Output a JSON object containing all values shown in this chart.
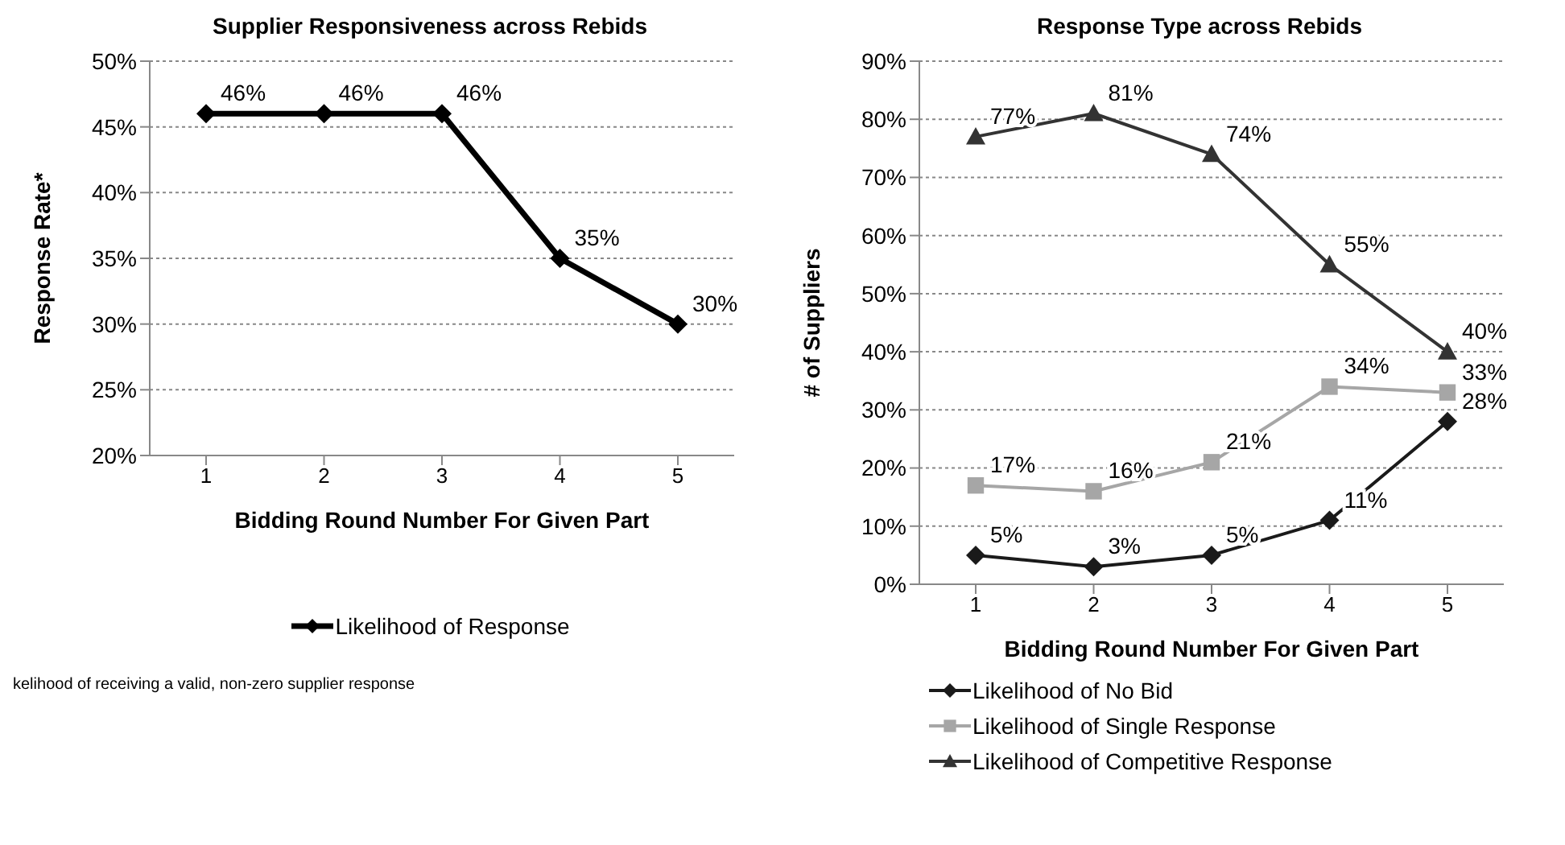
{
  "chart_data": [
    {
      "type": "line",
      "title": "Supplier Responsiveness across Rebids",
      "xlabel": "Bidding Round Number For Given Part",
      "ylabel": "Response Rate*",
      "categories": [
        "1",
        "2",
        "3",
        "4",
        "5"
      ],
      "ylim": [
        20,
        50
      ],
      "yticks": [
        {
          "value": 20,
          "label": "20%"
        },
        {
          "value": 25,
          "label": "25%"
        },
        {
          "value": 30,
          "label": "30%"
        },
        {
          "value": 35,
          "label": "35%"
        },
        {
          "value": 40,
          "label": "40%"
        },
        {
          "value": 45,
          "label": "45%"
        },
        {
          "value": 50,
          "label": "50%"
        }
      ],
      "grid": "y",
      "legend": "bottom",
      "series": [
        {
          "name": "Likelihood of Response",
          "color": "#000000",
          "marker": "diamond",
          "values": [
            46,
            46,
            46,
            35,
            30
          ],
          "value_labels": [
            "46%",
            "46%",
            "46%",
            "35%",
            "30%"
          ]
        }
      ],
      "annotations": [
        "kelihood of receiving a valid, non-zero supplier response"
      ]
    },
    {
      "type": "line",
      "title": "Response Type across Rebids",
      "xlabel": "Bidding Round Number For Given Part",
      "ylabel": "# of Suppliers",
      "categories": [
        "1",
        "2",
        "3",
        "4",
        "5"
      ],
      "ylim": [
        0,
        90
      ],
      "yticks": [
        {
          "value": 0,
          "label": "0%"
        },
        {
          "value": 10,
          "label": "10%"
        },
        {
          "value": 20,
          "label": "20%"
        },
        {
          "value": 30,
          "label": "30%"
        },
        {
          "value": 40,
          "label": "40%"
        },
        {
          "value": 50,
          "label": "50%"
        },
        {
          "value": 60,
          "label": "60%"
        },
        {
          "value": 70,
          "label": "70%"
        },
        {
          "value": 80,
          "label": "80%"
        },
        {
          "value": 90,
          "label": "90%"
        }
      ],
      "grid": "y",
      "legend": "bottom",
      "series": [
        {
          "name": "Likelihood of No Bid",
          "color": "#1a1a1a",
          "marker": "diamond",
          "values": [
            5,
            3,
            5,
            11,
            28
          ],
          "value_labels": [
            "5%",
            "3%",
            "5%",
            "11%",
            "28%"
          ]
        },
        {
          "name": "Likelihood of Single Response",
          "color": "#a6a6a6",
          "marker": "square",
          "values": [
            17,
            16,
            21,
            34,
            33
          ],
          "value_labels": [
            "17%",
            "16%",
            "21%",
            "34%",
            "33%"
          ]
        },
        {
          "name": "Likelihood of Competitive Response",
          "color": "#333333",
          "marker": "triangle",
          "values": [
            77,
            81,
            74,
            55,
            40
          ],
          "value_labels": [
            "77%",
            "81%",
            "74%",
            "55%",
            "40%"
          ]
        }
      ]
    }
  ]
}
